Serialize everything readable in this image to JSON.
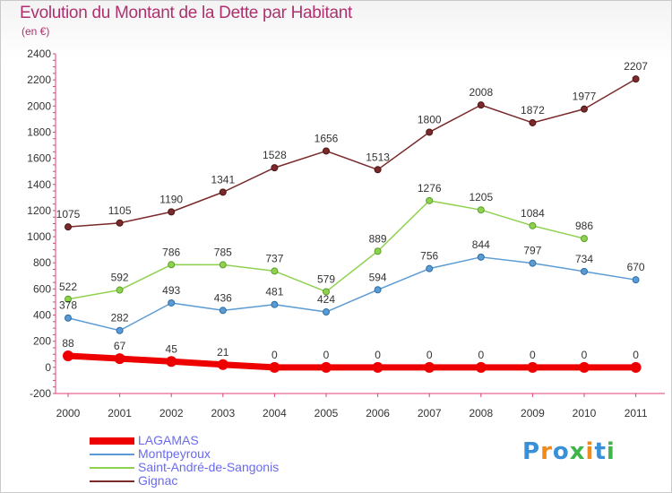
{
  "title": "Evolution du Montant de la Dette par Habitant",
  "subtitle": "(en €)",
  "logo_text": "Proxiti",
  "chart_data": {
    "type": "line",
    "x": [
      "2000",
      "2001",
      "2002",
      "2003",
      "2004",
      "2005",
      "2006",
      "2007",
      "2008",
      "2009",
      "2010",
      "2011"
    ],
    "ylim": [
      -200,
      2400
    ],
    "yticks": [
      -200,
      0,
      200,
      400,
      600,
      800,
      1000,
      1200,
      1400,
      1600,
      1800,
      2000,
      2200,
      2400
    ],
    "grid": false,
    "legend_position": "bottom-left",
    "series": [
      {
        "name": "LAGAMAS",
        "color": "#ee0000",
        "values": [
          88,
          67,
          45,
          21,
          0,
          0,
          0,
          0,
          0,
          0,
          0,
          0
        ]
      },
      {
        "name": "Montpeyroux",
        "color": "#5b9bd5",
        "values": [
          378,
          282,
          493,
          436,
          481,
          424,
          594,
          756,
          844,
          797,
          734,
          670
        ]
      },
      {
        "name": "Saint-André-de-Sangonis",
        "color": "#8fd14f",
        "values": [
          522,
          592,
          786,
          785,
          737,
          579,
          889,
          1276,
          1205,
          1084,
          986,
          null
        ]
      },
      {
        "name": "Gignac",
        "color": "#7a2a2a",
        "values": [
          1075,
          1105,
          1190,
          1341,
          1528,
          1656,
          1513,
          1800,
          2008,
          1872,
          1977,
          2207
        ]
      }
    ]
  }
}
